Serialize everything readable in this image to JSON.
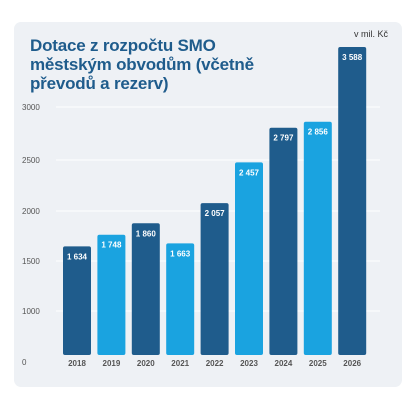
{
  "chart_data": {
    "type": "bar",
    "title": "Dotace z rozpočtu SMO městským obvodům (včetně převodů a rezerv)",
    "unit_label": "v mil. Kč",
    "categories": [
      "2018",
      "2019",
      "2020",
      "2021",
      "2022",
      "2023",
      "2024",
      "2025",
      "2026"
    ],
    "values": [
      1634,
      1748,
      1860,
      1663,
      2057,
      2457,
      2797,
      2856,
      3588
    ],
    "value_labels": [
      "1 634",
      "1 748",
      "1 860",
      "1 663",
      "2 057",
      "2 457",
      "2 797",
      "2 856",
      "3 588"
    ],
    "bar_colors": [
      "#1f5c8c",
      "#1aa3e0",
      "#1f5c8c",
      "#1aa3e0",
      "#1f5c8c",
      "#1aa3e0",
      "#1f5c8c",
      "#1aa3e0",
      "#1f5c8c"
    ],
    "yticks": [
      0,
      1000,
      1500,
      2000,
      2500,
      3000
    ],
    "ytick_labels": [
      "0",
      "1000",
      "1500",
      "2000",
      "2500",
      "3000"
    ],
    "ylim": [
      0,
      3000
    ],
    "grid": true,
    "xlabel": "",
    "ylabel": ""
  }
}
